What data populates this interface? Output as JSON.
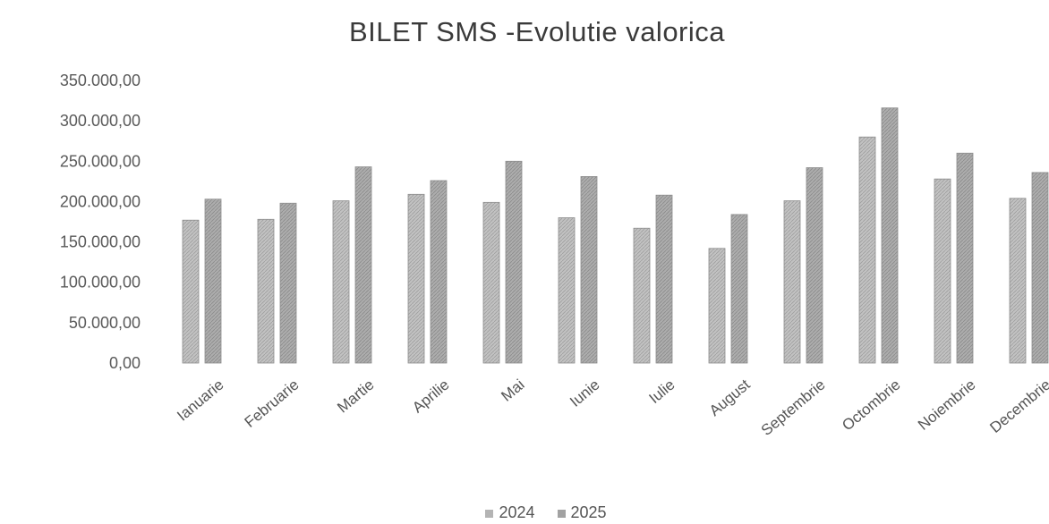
{
  "chart_data": {
    "type": "bar",
    "title": "BILET SMS -Evolutie valorica",
    "categories": [
      "Ianuarie",
      "Februarie",
      "Martie",
      "Aprilie",
      "Mai",
      "Iunie",
      "Iulie",
      "August",
      "Septembrie",
      "Octombrie",
      "Noiembrie",
      "Decembrie"
    ],
    "series": [
      {
        "name": "2024",
        "color": "#b4b4b4",
        "values": [
          177000,
          178000,
          201000,
          209000,
          199000,
          180000,
          167000,
          142000,
          201000,
          280000,
          228000,
          204000
        ]
      },
      {
        "name": "2025",
        "color": "#a2a2a2",
        "values": [
          203000,
          198000,
          243000,
          226000,
          250000,
          231000,
          208000,
          184000,
          242000,
          316000,
          260000,
          236000
        ]
      }
    ],
    "ylim": [
      0,
      350000
    ],
    "yticks": [
      "0,00",
      "50.000,00",
      "100.000,00",
      "150.000,00",
      "200.000,00",
      "250.000,00",
      "300.000,00",
      "350.000,00"
    ],
    "grid": false,
    "legend": "bottom"
  }
}
